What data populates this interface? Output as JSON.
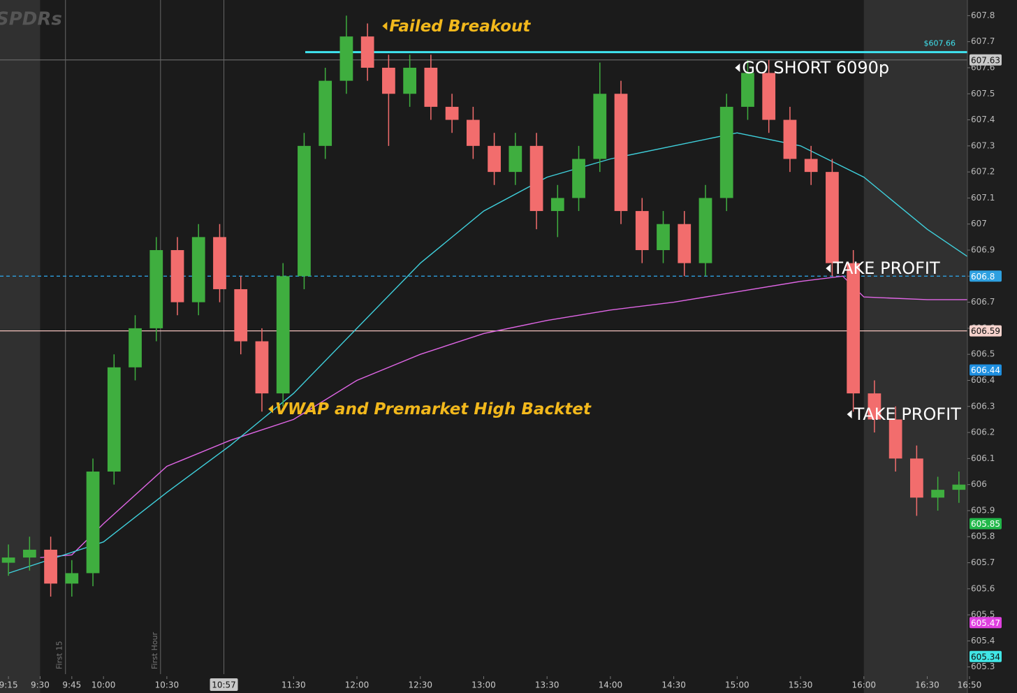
{
  "chart_data": {
    "type": "candlestick",
    "watermark": "SPDRs",
    "x": [
      555,
      565,
      575,
      585,
      595,
      605,
      615,
      625,
      635,
      645,
      655,
      665,
      675,
      685,
      695,
      705,
      715,
      725,
      735,
      745,
      755,
      765,
      775,
      785,
      795,
      805,
      815,
      825,
      835,
      845,
      855,
      865,
      875,
      885,
      895,
      905,
      915,
      925,
      935,
      945,
      955,
      965,
      975,
      985,
      995,
      1005
    ],
    "open": [
      605.7,
      605.72,
      605.75,
      605.62,
      605.66,
      606.05,
      606.45,
      606.6,
      606.9,
      606.7,
      606.95,
      606.75,
      606.55,
      606.35,
      606.8,
      607.3,
      607.55,
      607.72,
      607.6,
      607.5,
      607.6,
      607.45,
      607.4,
      607.3,
      607.2,
      607.3,
      607.05,
      607.1,
      607.25,
      607.5,
      607.05,
      606.9,
      607.0,
      606.85,
      607.1,
      607.45,
      607.58,
      607.4,
      607.25,
      607.2,
      606.85,
      606.35,
      606.25,
      606.1,
      605.95,
      605.98
    ],
    "high": [
      605.77,
      605.8,
      605.8,
      605.71,
      606.1,
      606.5,
      606.65,
      606.95,
      606.95,
      607.0,
      607.0,
      606.8,
      606.6,
      606.85,
      607.35,
      607.6,
      607.8,
      607.77,
      607.65,
      607.65,
      607.65,
      607.5,
      607.45,
      607.35,
      607.35,
      607.35,
      607.15,
      607.3,
      607.62,
      607.55,
      607.1,
      607.05,
      607.05,
      607.15,
      607.5,
      607.63,
      607.63,
      607.45,
      607.3,
      607.25,
      606.9,
      606.4,
      606.3,
      606.15,
      606.03,
      606.05
    ],
    "low": [
      605.65,
      605.67,
      605.57,
      605.57,
      605.61,
      606.0,
      606.4,
      606.55,
      606.65,
      606.65,
      606.7,
      606.5,
      606.28,
      606.3,
      606.75,
      607.25,
      607.5,
      607.55,
      607.3,
      607.45,
      607.4,
      607.35,
      607.25,
      607.15,
      607.15,
      606.98,
      606.95,
      607.05,
      607.2,
      607.0,
      606.85,
      606.85,
      606.8,
      606.8,
      607.05,
      607.4,
      607.35,
      607.2,
      607.15,
      606.8,
      606.28,
      606.2,
      606.05,
      605.88,
      605.9,
      605.93
    ],
    "close": [
      605.72,
      605.75,
      605.62,
      605.66,
      606.05,
      606.45,
      606.6,
      606.9,
      606.7,
      606.95,
      606.75,
      606.55,
      606.35,
      606.8,
      607.3,
      607.55,
      607.72,
      607.6,
      607.5,
      607.6,
      607.45,
      607.4,
      607.3,
      607.2,
      607.3,
      607.05,
      607.1,
      607.25,
      607.5,
      607.05,
      606.9,
      607.0,
      606.85,
      607.1,
      607.45,
      607.58,
      607.4,
      607.25,
      607.2,
      606.85,
      606.35,
      606.25,
      606.1,
      605.95,
      605.98,
      606.0
    ],
    "up_color": "#3fae3f",
    "down_color": "#f26d6d",
    "series": [
      {
        "color": "#e066e6",
        "x": [
          570,
          585,
          600,
          630,
          660,
          690,
          720,
          750,
          780,
          810,
          840,
          870,
          900,
          930,
          950,
          960,
          990,
          1010
        ],
        "values": [
          605.72,
          605.73,
          605.85,
          606.07,
          606.17,
          606.25,
          606.4,
          606.5,
          606.58,
          606.63,
          606.67,
          606.7,
          606.74,
          606.78,
          606.8,
          606.72,
          606.71,
          606.71
        ]
      },
      {
        "color": "#3fd0dc",
        "x": [
          555,
          600,
          630,
          660,
          690,
          720,
          750,
          780,
          810,
          840,
          870,
          900,
          930,
          960,
          990,
          1010
        ],
        "values": [
          605.66,
          605.78,
          605.97,
          606.15,
          606.35,
          606.6,
          606.85,
          607.05,
          607.18,
          607.25,
          607.3,
          607.35,
          607.3,
          607.18,
          606.98,
          606.87
        ]
      }
    ],
    "xlim": [
      551,
      1011
    ],
    "ylim": [
      605.2,
      607.86
    ],
    "xticks": [
      {
        "value": 555,
        "label": "9:15"
      },
      {
        "value": 570,
        "label": "9:30"
      },
      {
        "value": 585,
        "label": "9:45"
      },
      {
        "value": 600,
        "label": "10:00"
      },
      {
        "value": 630,
        "label": "10:30"
      },
      {
        "value": 690,
        "label": "11:30"
      },
      {
        "value": 720,
        "label": "12:00"
      },
      {
        "value": 750,
        "label": "12:30"
      },
      {
        "value": 780,
        "label": "13:00"
      },
      {
        "value": 810,
        "label": "13:30"
      },
      {
        "value": 840,
        "label": "14:00"
      },
      {
        "value": 870,
        "label": "14:30"
      },
      {
        "value": 900,
        "label": "15:00"
      },
      {
        "value": 930,
        "label": "15:30"
      },
      {
        "value": 960,
        "label": "16:00"
      },
      {
        "value": 990,
        "label": "16:30"
      },
      {
        "value": 1010,
        "label": "16:50"
      }
    ],
    "yticks": [
      605.3,
      605.4,
      605.5,
      605.6,
      605.7,
      605.8,
      605.9,
      606,
      606.1,
      606.2,
      606.3,
      606.4,
      606.5,
      606.6,
      606.7,
      606.8,
      606.9,
      607,
      607.1,
      607.2,
      607.3,
      607.4,
      607.5,
      607.6,
      607.7,
      607.8
    ],
    "premarket_end": 570,
    "afterhours_start": 960,
    "vlines": [
      {
        "value": 582,
        "label": "First 15"
      },
      {
        "value": 627,
        "label": "First Hour"
      },
      {
        "value": 657,
        "label": "10:57"
      }
    ],
    "levels": [
      {
        "value": 607.66,
        "label": "$607.66",
        "color": "#3fe3ef",
        "dashed": false
      },
      {
        "value": 607.63,
        "color": "#666666",
        "dashed": false
      },
      {
        "value": 606.8,
        "color": "#2ea0e0",
        "dashed": true
      },
      {
        "value": 606.59,
        "color": "#f3c2bc",
        "dashed": false
      }
    ],
    "price_labels": [
      {
        "value": 607.63,
        "color": "#c8c8c8"
      },
      {
        "value": 606.8,
        "color": "#2ea0e0"
      },
      {
        "value": 606.59,
        "color": "#f6d2cc"
      },
      {
        "value": 606.44,
        "color": "#1e8fe0"
      },
      {
        "value": 605.85,
        "color": "#22b84a"
      },
      {
        "value": 605.47,
        "color": "#e040e0"
      },
      {
        "value": 605.34,
        "color": "#40e6e6"
      }
    ],
    "annotations": [
      {
        "text": "Failed Breakout",
        "x": 732,
        "y": 607.76,
        "color": "#f2b81c",
        "italic": true
      },
      {
        "text": "GO SHORT 6090p",
        "x": 899,
        "y": 607.6,
        "color": "#ffffff",
        "italic": false
      },
      {
        "text": "TAKE PROFIT",
        "x": 942,
        "y": 606.83,
        "color": "#ffffff",
        "italic": false
      },
      {
        "text": "TAKE PROFIT",
        "x": 952,
        "y": 606.27,
        "color": "#ffffff",
        "italic": false
      },
      {
        "text": "VWAP and Premarket High Backtet",
        "x": 678,
        "y": 606.29,
        "color": "#f2b81c",
        "italic": true
      }
    ]
  }
}
